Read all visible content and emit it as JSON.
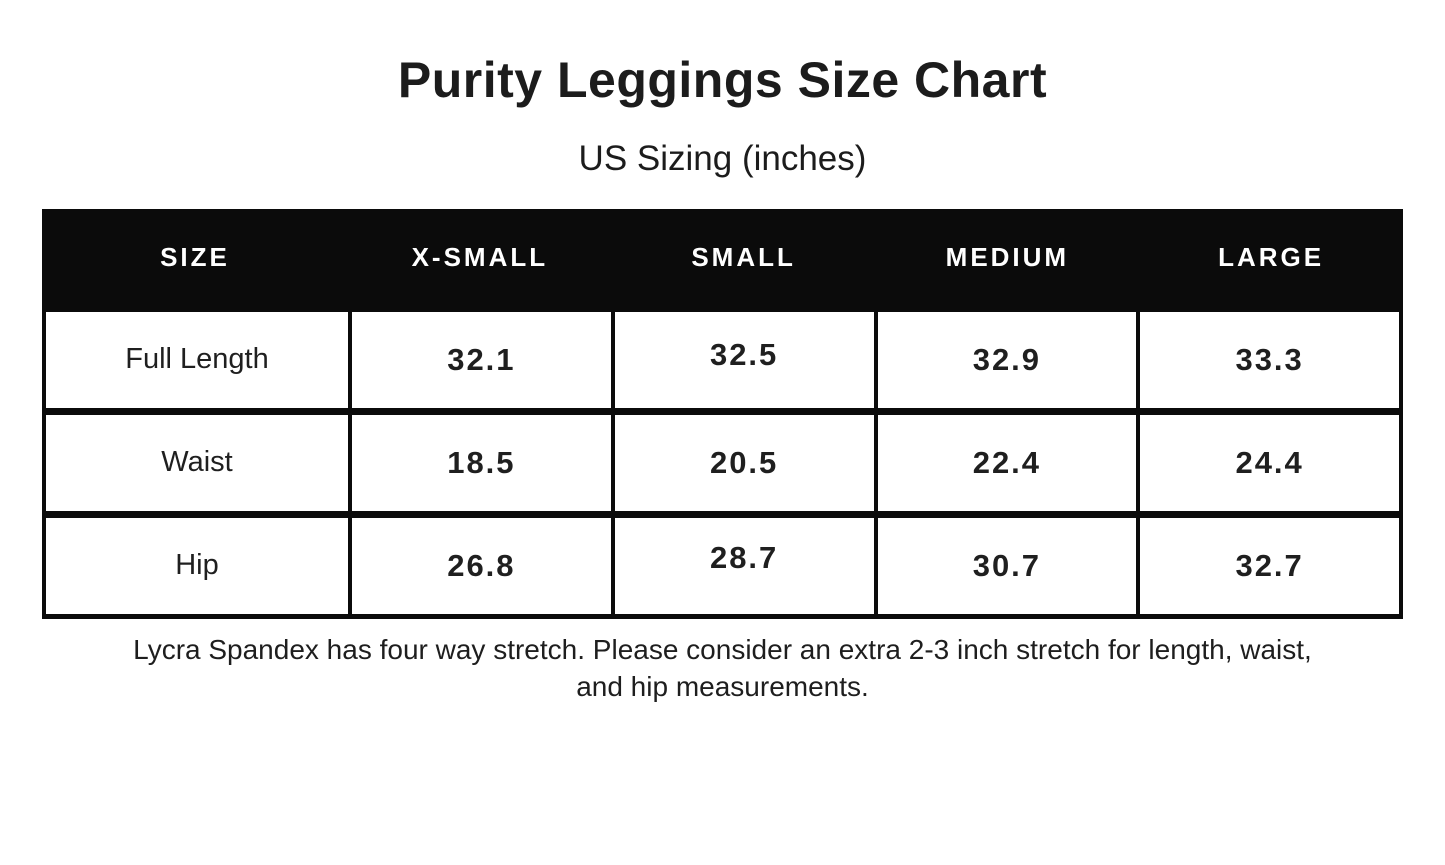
{
  "colors": {
    "table_black": "#0b0b0b",
    "text_dark": "#1f1f1f",
    "background": "#ffffff"
  },
  "header": {
    "title": "Purity Leggings Size Chart",
    "subtitle": "US Sizing (inches)"
  },
  "chart_data": {
    "type": "table",
    "title": "Purity Leggings Size Chart",
    "subtitle": "US Sizing (inches)",
    "columns": [
      "SIZE",
      "X-SMALL",
      "SMALL",
      "MEDIUM",
      "LARGE"
    ],
    "rows": [
      {
        "label": "Full Length",
        "values": [
          32.1,
          32.5,
          32.9,
          33.3
        ]
      },
      {
        "label": "Waist",
        "values": [
          18.5,
          20.5,
          22.4,
          24.4
        ]
      },
      {
        "label": "Hip",
        "values": [
          26.8,
          28.7,
          30.7,
          32.7
        ]
      }
    ],
    "footnote_line1": "Lycra Spandex has four way stretch. Please consider an extra 2-3 inch stretch for length, waist,",
    "footnote_line2": "and hip measurements."
  }
}
